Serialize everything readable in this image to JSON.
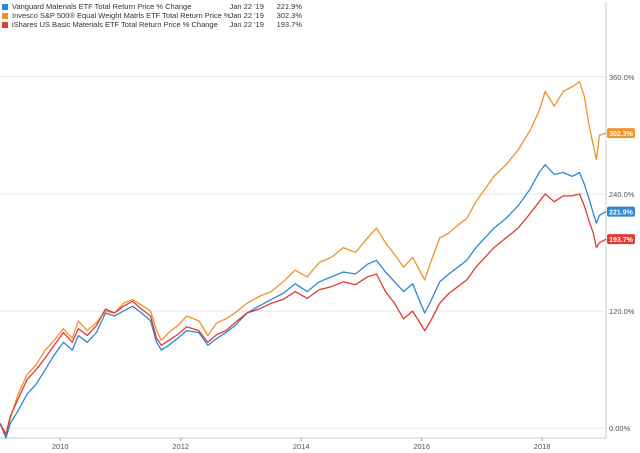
{
  "legend": [
    {
      "name": "Vanguard Materials ETF Total Return Price % Change",
      "date": "Jan 22 '19",
      "value": "221.9%",
      "color": "#2f86d6"
    },
    {
      "name": "Invesco S&P 500® Equal Weight Matrls ETF Total Return Price % Change",
      "date": "Jan 22 '19",
      "value": "302.3%",
      "color": "#f0932b"
    },
    {
      "name": "iShares US Basic Materials ETF Total Return Price % Change",
      "date": "Jan 22 '19",
      "value": "193.7%",
      "color": "#e03c31"
    }
  ],
  "chart_data": {
    "type": "line",
    "xlim": [
      2009.0,
      2019.06
    ],
    "ylim": [
      -10,
      410
    ],
    "y_ticks": [
      0,
      120,
      240,
      360
    ],
    "y_tick_labels": [
      "0.00%",
      "120.0%",
      "240.0%",
      "360.0%"
    ],
    "x_ticks": [
      2010,
      2012,
      2014,
      2016,
      2018
    ],
    "x_tick_labels": [
      "2010",
      "2012",
      "2014",
      "2016",
      "2018"
    ],
    "grid": "horizontal",
    "legend_position": "top-left",
    "end_labels": [
      "302.3%",
      "221.9%",
      "193.7%"
    ],
    "series": [
      {
        "name": "Invesco S&P 500® Equal Weight Matrls ETF Total Return Price % Change",
        "color": "#f0932b",
        "x": [
          2009.0,
          2009.1,
          2009.17,
          2009.3,
          2009.45,
          2009.6,
          2009.75,
          2009.9,
          2010.05,
          2010.2,
          2010.3,
          2010.45,
          2010.6,
          2010.75,
          2010.9,
          2011.05,
          2011.2,
          2011.35,
          2011.5,
          2011.6,
          2011.68,
          2011.8,
          2011.95,
          2012.1,
          2012.3,
          2012.45,
          2012.6,
          2012.75,
          2012.9,
          2013.1,
          2013.3,
          2013.5,
          2013.7,
          2013.9,
          2014.1,
          2014.3,
          2014.5,
          2014.7,
          2014.9,
          2015.1,
          2015.25,
          2015.4,
          2015.55,
          2015.7,
          2015.85,
          2016.05,
          2016.15,
          2016.3,
          2016.45,
          2016.6,
          2016.75,
          2016.9,
          2017.05,
          2017.2,
          2017.4,
          2017.6,
          2017.8,
          2017.95,
          2018.05,
          2018.2,
          2018.35,
          2018.5,
          2018.62,
          2018.7,
          2018.78,
          2018.85,
          2018.9,
          2018.95,
          2019.06
        ],
        "y": [
          5,
          -8,
          10,
          35,
          55,
          65,
          80,
          90,
          102,
          92,
          110,
          100,
          108,
          120,
          118,
          128,
          132,
          126,
          120,
          100,
          90,
          98,
          105,
          115,
          110,
          95,
          108,
          112,
          118,
          128,
          135,
          140,
          150,
          162,
          155,
          170,
          175,
          185,
          180,
          195,
          205,
          190,
          178,
          165,
          175,
          152,
          170,
          195,
          200,
          208,
          215,
          232,
          245,
          258,
          270,
          285,
          305,
          325,
          345,
          330,
          345,
          350,
          355,
          340,
          310,
          290,
          275,
          300,
          302.3
        ]
      },
      {
        "name": "Vanguard Materials ETF Total Return Price % Change",
        "color": "#2f86d6",
        "x": [
          2009.0,
          2009.1,
          2009.17,
          2009.3,
          2009.45,
          2009.6,
          2009.75,
          2009.9,
          2010.05,
          2010.2,
          2010.3,
          2010.45,
          2010.6,
          2010.75,
          2010.9,
          2011.05,
          2011.2,
          2011.35,
          2011.5,
          2011.6,
          2011.68,
          2011.8,
          2011.95,
          2012.1,
          2012.3,
          2012.45,
          2012.6,
          2012.75,
          2012.9,
          2013.1,
          2013.3,
          2013.5,
          2013.7,
          2013.9,
          2014.1,
          2014.3,
          2014.5,
          2014.7,
          2014.9,
          2015.1,
          2015.25,
          2015.4,
          2015.55,
          2015.7,
          2015.85,
          2016.05,
          2016.15,
          2016.3,
          2016.45,
          2016.6,
          2016.75,
          2016.9,
          2017.05,
          2017.2,
          2017.4,
          2017.6,
          2017.8,
          2017.95,
          2018.05,
          2018.2,
          2018.35,
          2018.5,
          2018.62,
          2018.7,
          2018.78,
          2018.85,
          2018.9,
          2018.95,
          2019.06
        ],
        "y": [
          5,
          -10,
          5,
          18,
          35,
          45,
          60,
          75,
          88,
          80,
          95,
          88,
          98,
          118,
          115,
          120,
          125,
          118,
          110,
          88,
          80,
          85,
          92,
          100,
          98,
          85,
          92,
          98,
          105,
          118,
          125,
          132,
          138,
          148,
          140,
          150,
          155,
          160,
          158,
          168,
          172,
          160,
          150,
          140,
          148,
          118,
          130,
          150,
          158,
          165,
          172,
          185,
          195,
          205,
          215,
          228,
          245,
          262,
          270,
          260,
          262,
          258,
          262,
          250,
          235,
          220,
          210,
          218,
          221.9
        ]
      },
      {
        "name": "iShares US Basic Materials ETF Total Return Price % Change",
        "color": "#e03c31",
        "x": [
          2009.0,
          2009.1,
          2009.17,
          2009.3,
          2009.45,
          2009.6,
          2009.75,
          2009.9,
          2010.05,
          2010.2,
          2010.3,
          2010.45,
          2010.6,
          2010.75,
          2010.9,
          2011.05,
          2011.2,
          2011.35,
          2011.5,
          2011.6,
          2011.68,
          2011.8,
          2011.95,
          2012.1,
          2012.3,
          2012.45,
          2012.6,
          2012.75,
          2012.9,
          2013.1,
          2013.3,
          2013.5,
          2013.7,
          2013.9,
          2014.1,
          2014.3,
          2014.5,
          2014.7,
          2014.9,
          2015.1,
          2015.25,
          2015.4,
          2015.55,
          2015.7,
          2015.85,
          2016.05,
          2016.15,
          2016.3,
          2016.45,
          2016.6,
          2016.75,
          2016.9,
          2017.05,
          2017.2,
          2017.4,
          2017.6,
          2017.8,
          2017.95,
          2018.05,
          2018.2,
          2018.35,
          2018.5,
          2018.62,
          2018.7,
          2018.78,
          2018.85,
          2018.9,
          2018.95,
          2019.06
        ],
        "y": [
          5,
          -6,
          12,
          30,
          50,
          60,
          72,
          85,
          98,
          88,
          102,
          95,
          105,
          122,
          118,
          125,
          130,
          122,
          115,
          92,
          85,
          90,
          96,
          104,
          100,
          88,
          96,
          100,
          108,
          118,
          122,
          128,
          132,
          140,
          133,
          142,
          145,
          150,
          147,
          155,
          158,
          140,
          128,
          112,
          120,
          100,
          110,
          128,
          138,
          145,
          152,
          165,
          175,
          185,
          195,
          205,
          220,
          232,
          240,
          232,
          238,
          238,
          240,
          228,
          212,
          200,
          185,
          190,
          193.7
        ]
      }
    ]
  }
}
